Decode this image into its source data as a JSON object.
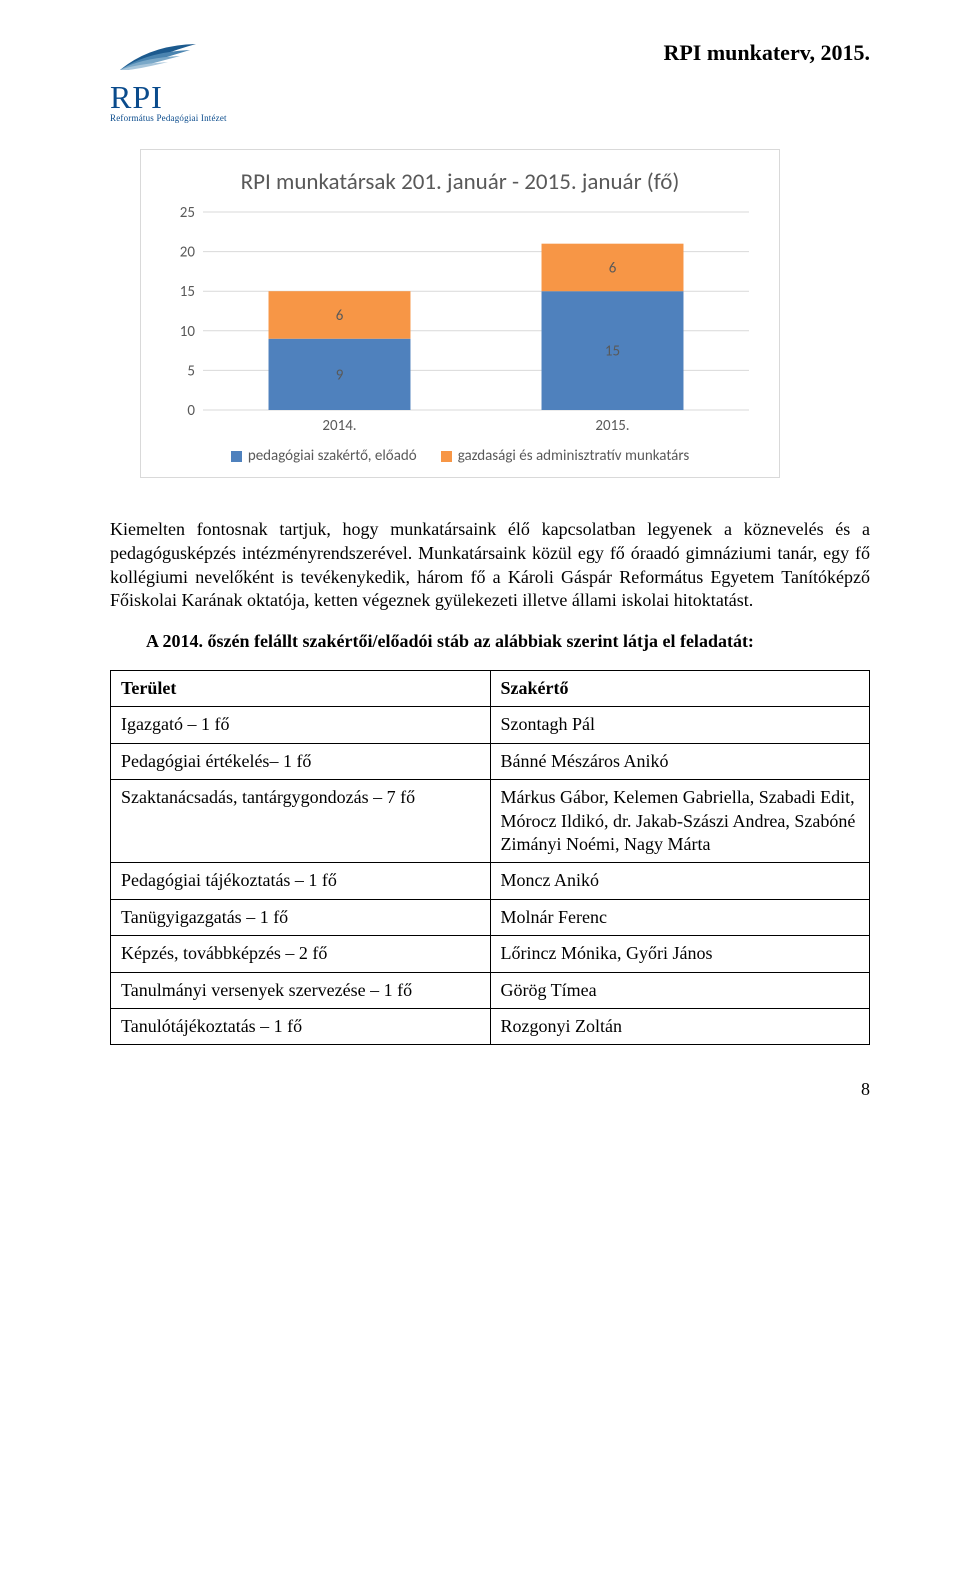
{
  "header": {
    "title": "RPI munkaterv, 2015.",
    "logo_abbrev": "RPI",
    "logo_sub": "Református Pedagógiai Intézet"
  },
  "chart": {
    "type": "stacked-bar",
    "title": "RPI munkatársak 201. január - 2015. január (fő)",
    "categories": [
      "2014.",
      "2015."
    ],
    "series": [
      {
        "name": "pedagógiai szakértő, előadó",
        "color": "#4f81bd",
        "values": [
          9,
          15
        ]
      },
      {
        "name": "gazdasági és adminisztratív munkatárs",
        "color": "#f79646",
        "values": [
          6,
          6
        ]
      }
    ],
    "ylim": [
      0,
      25
    ],
    "ytick_step": 5,
    "background_color": "#ffffff",
    "grid_color": "#d9d9d9",
    "axis_text_color": "#595959",
    "title_fontsize": 22,
    "axis_fontsize": 15,
    "bar_width_ratio": 0.52
  },
  "paragraphs": {
    "p1": "Kiemelten fontosnak tartjuk, hogy munkatársaink élő kapcsolatban legyenek a köznevelés és a pedagógusképzés intézményrendszerével. Munkatársaink közül egy fő óraadó gimnáziumi tanár, egy fő kollégiumi nevelőként is tevékenykedik, három fő a Károli Gáspár Református Egyetem Tanítóképző Főiskolai Karának oktatója, ketten végeznek gyülekezeti illetve állami iskolai hitoktatást.",
    "subhead": "A 2014. őszén felállt szakértői/előadói stáb az alábbiak szerint látja el feladatát:"
  },
  "table": {
    "headers": [
      "Terület",
      "Szakértő"
    ],
    "rows": [
      [
        "Igazgató – 1 fő",
        "Szontagh Pál"
      ],
      [
        "Pedagógiai értékelés– 1 fő",
        "Bánné Mészáros Anikó"
      ],
      [
        "Szaktanácsadás, tantárgygondozás – 7 fő",
        "Márkus Gábor, Kelemen Gabriella, Szabadi Edit, Mórocz Ildikó, dr. Jakab-Szászi Andrea, Szabóné Zimányi Noémi, Nagy Márta"
      ],
      [
        "Pedagógiai tájékoztatás – 1 fő",
        "Moncz Anikó"
      ],
      [
        "Tanügyigazgatás – 1 fő",
        "Molnár Ferenc"
      ],
      [
        "Képzés, továbbképzés  – 2 fő",
        "Lőrincz Mónika, Győri János"
      ],
      [
        "Tanulmányi versenyek szervezése – 1 fő",
        "Görög Tímea"
      ],
      [
        "Tanulótájékoztatás – 1 fő",
        "Rozgonyi Zoltán"
      ]
    ]
  },
  "page_number": "8"
}
